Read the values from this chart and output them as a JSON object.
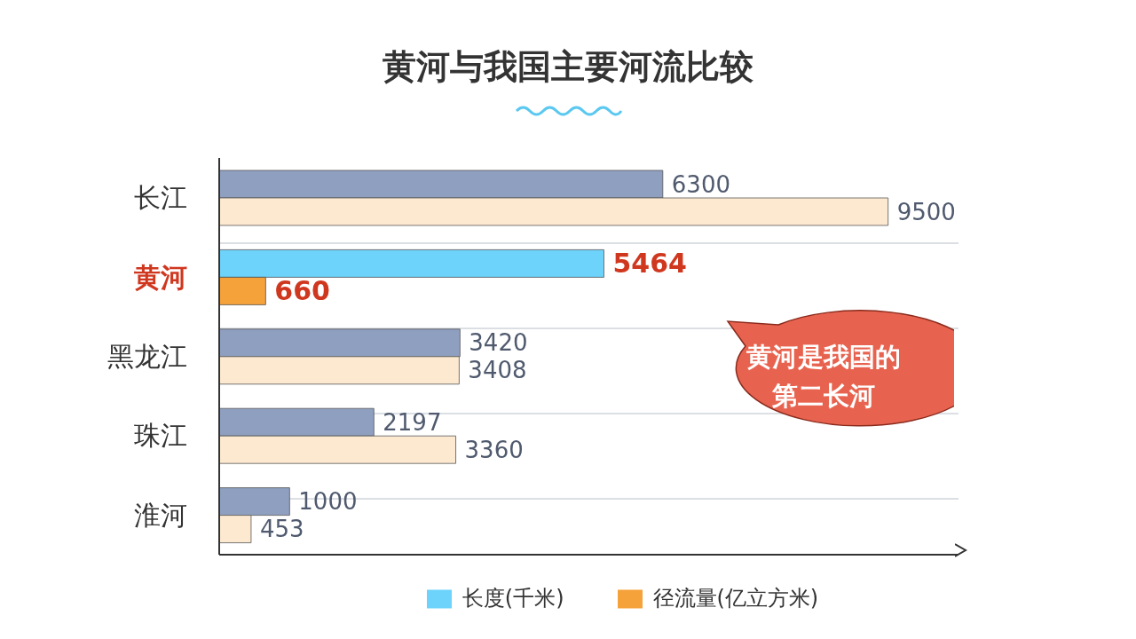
{
  "chart_data": {
    "type": "bar",
    "orientation": "horizontal",
    "title": "黄河与我国主要河流比较",
    "categories": [
      "长江",
      "黄河",
      "黑龙江",
      "珠江",
      "淮河"
    ],
    "series": [
      {
        "name": "长度(千米)",
        "color": "#6dd3fb",
        "colors": [
          "#8e9fc0",
          "#6dd3fb",
          "#8e9fc0",
          "#8e9fc0",
          "#8e9fc0"
        ],
        "values": [
          6300,
          5464,
          3420,
          2197,
          1000
        ]
      },
      {
        "name": "径流量(亿立方米)",
        "color": "#f6a23a",
        "colors": [
          "#fde9d0",
          "#f6a23a",
          "#fde9d0",
          "#fde9d0",
          "#fde9d0"
        ],
        "values": [
          9500,
          660,
          3408,
          3360,
          453
        ]
      }
    ],
    "xlim": [
      0,
      10500
    ],
    "tick_labels": "y",
    "grid": "y",
    "data_labels": true,
    "legend": "bottom",
    "annotations": [
      "黄河是我国的第二长河"
    ]
  }
}
